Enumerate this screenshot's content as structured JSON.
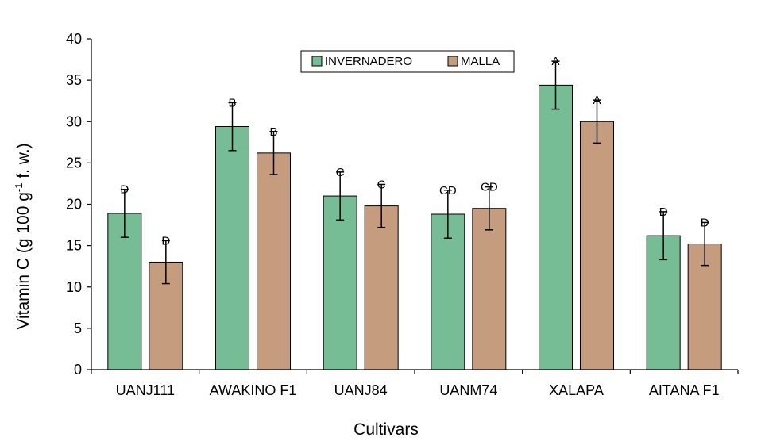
{
  "chart_data": {
    "type": "bar",
    "title": "",
    "xlabel": "Cultivars",
    "ylabel": "Vitamin C (g 100 g⁻¹ f. w.)",
    "ylabel_parts": {
      "pre": "Vitamin C (g 100 g",
      "sup": "-1",
      "post": " f. w.)"
    },
    "ylim": [
      0,
      40
    ],
    "yticks": [
      0,
      5,
      10,
      15,
      20,
      25,
      30,
      35,
      40
    ],
    "grid": false,
    "legend_position": "top-center",
    "categories": [
      "UANJ111",
      "AWAKINO F1",
      "UANJ84",
      "UANM74",
      "XALAPA",
      "AITANA F1"
    ],
    "series": [
      {
        "name": "INVERNADERO",
        "color": "#76bd95",
        "values": [
          18.9,
          29.4,
          21.0,
          18.8,
          34.4,
          16.2
        ],
        "errors": [
          2.9,
          2.9,
          2.9,
          2.9,
          2.9,
          2.9
        ],
        "labels": [
          "D",
          "B",
          "C",
          "CD",
          "A",
          "D"
        ]
      },
      {
        "name": "MALLA",
        "color": "#c69c7e",
        "values": [
          13.0,
          26.2,
          19.8,
          19.5,
          30.0,
          15.2
        ],
        "errors": [
          2.6,
          2.6,
          2.6,
          2.6,
          2.6,
          2.6
        ],
        "labels": [
          "D",
          "B",
          "C",
          "CD",
          "A",
          "D"
        ]
      }
    ]
  }
}
